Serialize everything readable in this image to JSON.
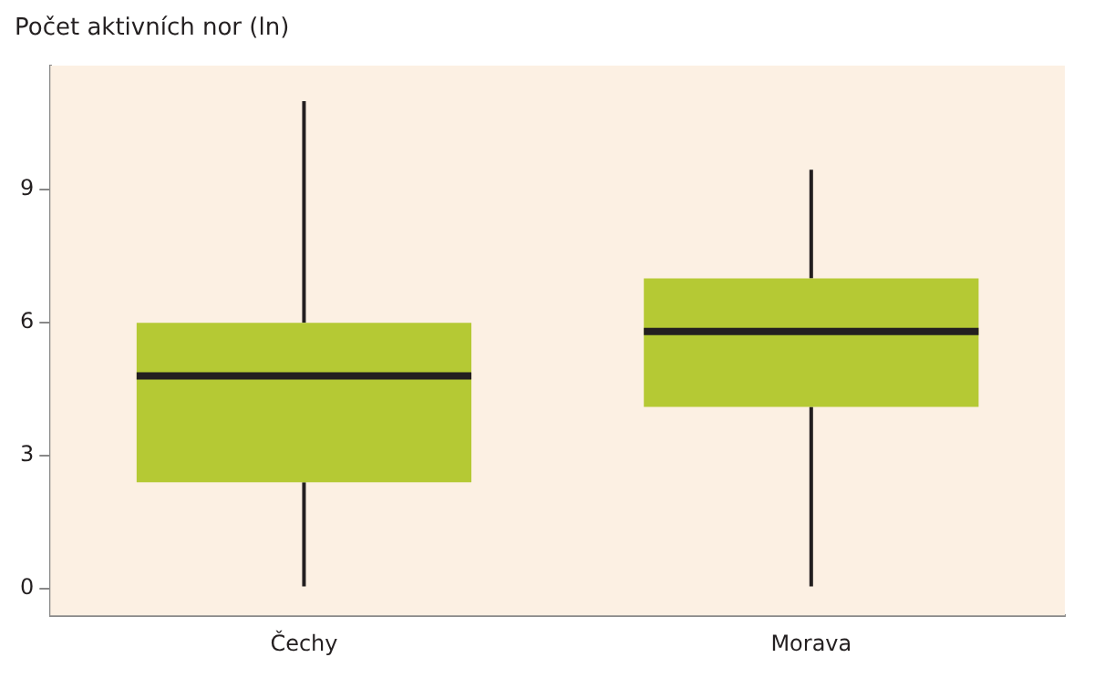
{
  "chart_data": {
    "type": "box",
    "ylabel": "Počet aktivních nor (ln)",
    "categories": [
      "Čechy",
      "Morava"
    ],
    "series": [
      {
        "color": "#b5c934",
        "boxes": [
          {
            "low": 0.05,
            "q1": 2.4,
            "median": 4.8,
            "q3": 6.0,
            "high": 11.0
          },
          {
            "low": 0.05,
            "q1": 4.1,
            "median": 5.8,
            "q3": 7.0,
            "high": 9.45
          }
        ]
      }
    ],
    "ylim": [
      -0.6,
      11.8
    ],
    "yticks": [
      0,
      3,
      6,
      9
    ],
    "grid": false,
    "legend": false
  }
}
